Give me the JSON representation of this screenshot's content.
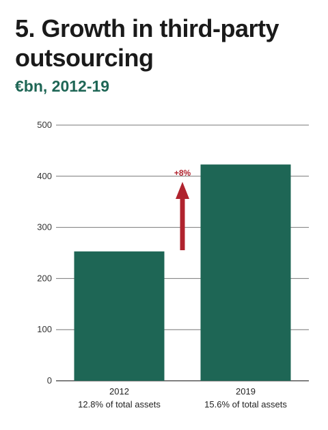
{
  "title": "5. Growth in third-party outsourcing",
  "subtitle": "€bn, 2012-19",
  "colors": {
    "bar": "#1e6655",
    "accent": "#b0232e",
    "subtitle": "#1e6655"
  },
  "chart_data": {
    "type": "bar",
    "categories": [
      "2012",
      "2019"
    ],
    "category_sublabels": [
      "12.8% of total assets",
      "15.6% of total assets"
    ],
    "values": [
      253,
      423
    ],
    "ylim": [
      0,
      500
    ],
    "yticks": [
      0,
      100,
      200,
      300,
      400,
      500
    ],
    "grid": true,
    "annotation": {
      "text": "+8%",
      "icon": "arrow-up-icon"
    }
  }
}
